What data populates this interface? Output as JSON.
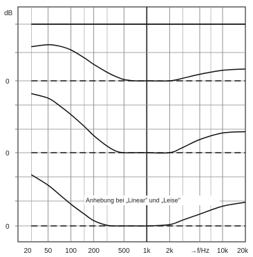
{
  "chart_data": {
    "type": "line",
    "title": "",
    "xlabel": "f/Hz",
    "ylabel": "dB",
    "x_scale": "log",
    "xlim": [
      20,
      20000
    ],
    "x_ticks": [
      20,
      50,
      100,
      200,
      500,
      1000,
      2000,
      5000,
      10000,
      20000
    ],
    "x_tick_labels": [
      "20",
      "50",
      "100",
      "200",
      "500",
      "1k",
      "2k",
      "→f/Hz",
      "10k",
      "20k"
    ],
    "y_unit_label": "dB",
    "panel_zero_labels": [
      "0",
      "0",
      "0"
    ],
    "annotation": "Anhebung bei „Linear\" und „Leise\"",
    "grid": true,
    "panels": [
      {
        "name": "top",
        "flat_line_db": 6,
        "dashed_zero": true,
        "series": [
          {
            "x": [
              30,
              50,
              70,
              100,
              150,
              200,
              300,
              400,
              500,
              700,
              1000,
              2000,
              3000,
              5000,
              10000,
              20000
            ],
            "y": [
              5.2,
              5.5,
              5.3,
              4.7,
              3.5,
              2.5,
              1.3,
              0.6,
              0.2,
              0,
              0,
              0,
              0.4,
              1.0,
              1.6,
              1.8
            ]
          }
        ]
      },
      {
        "name": "middle",
        "dashed_zero": true,
        "series": [
          {
            "x": [
              30,
              50,
              70,
              100,
              150,
              200,
              300,
              400,
              500,
              700,
              1000,
              2000,
              3000,
              5000,
              10000,
              20000
            ],
            "y": [
              9.0,
              8.3,
              7.2,
              5.8,
              4.0,
              2.6,
              1.0,
              0.2,
              0,
              0,
              0,
              0,
              0.8,
              2.0,
              3.0,
              3.2
            ]
          }
        ]
      },
      {
        "name": "bottom",
        "dashed_zero": true,
        "series": [
          {
            "x": [
              30,
              50,
              70,
              100,
              150,
              200,
              300,
              400,
              500,
              700,
              1000,
              2000,
              3000,
              5000,
              10000,
              20000
            ],
            "y": [
              7.8,
              6.2,
              4.8,
              3.3,
              1.8,
              0.8,
              0.1,
              0,
              0,
              0,
              0,
              0.2,
              0.9,
              1.8,
              3.0,
              3.6
            ]
          }
        ]
      }
    ]
  }
}
